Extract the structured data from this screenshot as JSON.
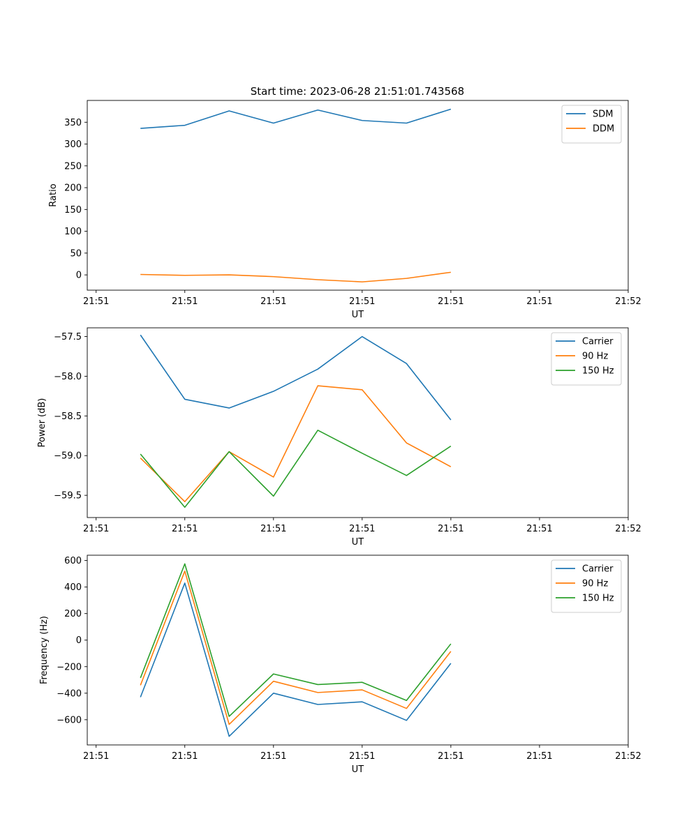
{
  "figure": {
    "title": "Start time: 2023-06-28 21:51:01.743568",
    "colors": {
      "blue": "#1f77b4",
      "orange": "#ff7f0e",
      "green": "#2ca02c"
    }
  },
  "chart_data": [
    {
      "type": "line",
      "title": "Start time: 2023-06-28 21:51:01.743568",
      "xlabel": "UT",
      "ylabel": "Ratio",
      "x": [
        0.5,
        1.0,
        1.5,
        2.0,
        2.5,
        3.0,
        3.5,
        4.0
      ],
      "x_ticks": [
        0,
        1,
        2,
        3,
        4,
        5,
        6
      ],
      "x_tick_labels": [
        "21:51",
        "21:51",
        "21:51",
        "21:51",
        "21:51",
        "21:51",
        "21:52"
      ],
      "xlim": [
        -0.1,
        6.0
      ],
      "ylim": [
        -35,
        400
      ],
      "y_ticks": [
        0,
        50,
        100,
        150,
        200,
        250,
        300,
        350
      ],
      "grid": false,
      "legend_position": "upper right",
      "series": [
        {
          "name": "SDM",
          "color": "#1f77b4",
          "values": [
            336,
            343,
            376,
            348,
            378,
            354,
            348,
            380
          ]
        },
        {
          "name": "DDM",
          "color": "#ff7f0e",
          "values": [
            1,
            -1,
            0,
            -4,
            -11,
            -16,
            -8,
            6
          ]
        }
      ]
    },
    {
      "type": "line",
      "title": "",
      "xlabel": "UT",
      "ylabel": "Power (dB)",
      "x": [
        0.5,
        1.0,
        1.5,
        2.0,
        2.5,
        3.0,
        3.5,
        4.0
      ],
      "x_ticks": [
        0,
        1,
        2,
        3,
        4,
        5,
        6
      ],
      "x_tick_labels": [
        "21:51",
        "21:51",
        "21:51",
        "21:51",
        "21:51",
        "21:51",
        "21:52"
      ],
      "xlim": [
        -0.1,
        6.0
      ],
      "ylim": [
        -59.78,
        -57.39
      ],
      "y_ticks": [
        -59.5,
        -59.0,
        -58.5,
        -58.0,
        -57.5
      ],
      "y_tick_labels": [
        "−59.5",
        "−59.0",
        "−58.5",
        "−58.0",
        "−57.5"
      ],
      "grid": false,
      "legend_position": "upper right",
      "series": [
        {
          "name": "Carrier",
          "color": "#1f77b4",
          "values": [
            -57.48,
            -58.29,
            -58.4,
            -58.19,
            -57.91,
            -57.5,
            -57.84,
            -58.55
          ]
        },
        {
          "name": "90 Hz",
          "color": "#ff7f0e",
          "values": [
            -59.03,
            -59.58,
            -58.95,
            -59.27,
            -58.12,
            -58.17,
            -58.84,
            -59.14
          ]
        },
        {
          "name": "150 Hz",
          "color": "#2ca02c",
          "values": [
            -58.98,
            -59.65,
            -58.95,
            -59.51,
            -58.68,
            -58.97,
            -59.25,
            -58.88
          ]
        }
      ]
    },
    {
      "type": "line",
      "title": "",
      "xlabel": "UT",
      "ylabel": "Frequency (Hz)",
      "x": [
        0.5,
        1.0,
        1.5,
        2.0,
        2.5,
        3.0,
        3.5,
        4.0
      ],
      "x_ticks": [
        0,
        1,
        2,
        3,
        4,
        5,
        6
      ],
      "x_tick_labels": [
        "21:51",
        "21:51",
        "21:51",
        "21:51",
        "21:51",
        "21:51",
        "21:52"
      ],
      "xlim": [
        -0.1,
        6.0
      ],
      "ylim": [
        -790,
        640
      ],
      "y_ticks": [
        -600,
        -400,
        -200,
        0,
        200,
        400,
        600
      ],
      "y_tick_labels": [
        "−600",
        "−400",
        "−200",
        "0",
        "200",
        "400",
        "600"
      ],
      "grid": false,
      "legend_position": "upper right",
      "series": [
        {
          "name": "Carrier",
          "color": "#1f77b4",
          "values": [
            -430,
            430,
            -725,
            -400,
            -485,
            -465,
            -605,
            -175
          ]
        },
        {
          "name": "90 Hz",
          "color": "#ff7f0e",
          "values": [
            -340,
            520,
            -635,
            -310,
            -395,
            -375,
            -515,
            -85
          ]
        },
        {
          "name": "150 Hz",
          "color": "#2ca02c",
          "values": [
            -285,
            575,
            -575,
            -255,
            -335,
            -318,
            -455,
            -28
          ]
        }
      ]
    }
  ]
}
